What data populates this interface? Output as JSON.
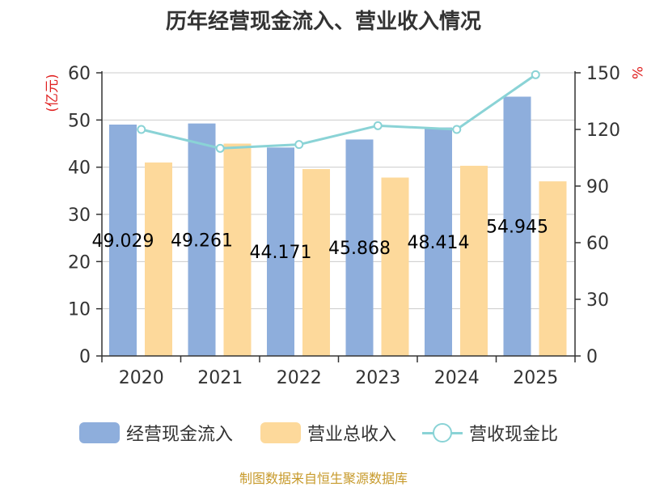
{
  "title": "历年经营现金流入、营业收入情况",
  "source": "制图数据来自恒生聚源数据库",
  "colors": {
    "cash": "#8eaedc",
    "revenue": "#fdd99b",
    "ratio": "#8ad3d6",
    "unit": "#e02020"
  },
  "chart_data": {
    "type": "bar",
    "categories": [
      "2020",
      "2021",
      "2022",
      "2023",
      "2024",
      "2025"
    ],
    "series": [
      {
        "name": "经营现金流入",
        "type": "bar",
        "axis": "left",
        "values": [
          49.029,
          49.261,
          44.171,
          45.868,
          48.414,
          54.945
        ]
      },
      {
        "name": "营业总收入",
        "type": "bar",
        "axis": "left",
        "values": [
          41.0,
          45.0,
          39.6,
          37.8,
          40.3,
          37.0
        ]
      },
      {
        "name": "营收现金比",
        "type": "line",
        "axis": "right",
        "values": [
          120,
          110,
          112,
          122,
          120,
          149
        ]
      }
    ],
    "data_labels": [
      "49.029",
      "49.261",
      "44.171",
      "45.868",
      "48.414",
      "54.945"
    ],
    "y_left": {
      "label": "(亿元)",
      "ylim": [
        0,
        60
      ],
      "ticks": [
        "0",
        "10",
        "20",
        "30",
        "40",
        "50",
        "60"
      ]
    },
    "y_right": {
      "label": "%",
      "ylim": [
        0,
        150
      ],
      "ticks": [
        "0",
        "30",
        "60",
        "90",
        "120",
        "150"
      ]
    },
    "grid": true,
    "legend_position": "bottom"
  }
}
